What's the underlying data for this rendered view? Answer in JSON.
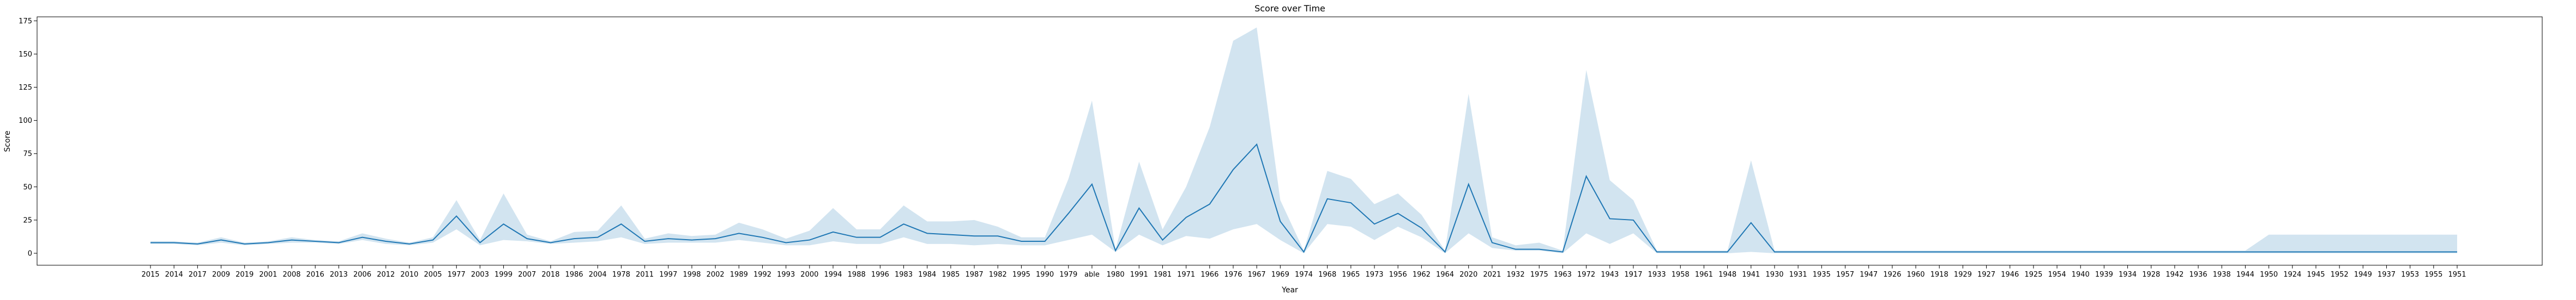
{
  "chart_data": {
    "type": "line",
    "title": "Score over Time",
    "xlabel": "Year",
    "ylabel": "Score",
    "ylim": [
      -9,
      178
    ],
    "yticks": [
      0,
      25,
      50,
      75,
      100,
      125,
      150,
      175
    ],
    "grid": false,
    "legend": "none",
    "colors": {
      "line": "#1f77b4",
      "band": "#1f77b4"
    },
    "categories": [
      "2015",
      "2014",
      "2017",
      "2009",
      "2019",
      "2001",
      "2008",
      "2016",
      "2013",
      "2006",
      "2012",
      "2010",
      "2005",
      "1977",
      "2003",
      "1999",
      "2007",
      "2018",
      "1986",
      "2004",
      "1978",
      "2011",
      "1997",
      "1998",
      "2002",
      "1989",
      "1992",
      "1993",
      "2000",
      "1994",
      "1988",
      "1996",
      "1983",
      "1984",
      "1985",
      "1987",
      "1982",
      "1995",
      "1990",
      "1979",
      "able",
      "1980",
      "1991",
      "1981",
      "1971",
      "1966",
      "1976",
      "1967",
      "1969",
      "1974",
      "1968",
      "1965",
      "1973",
      "1956",
      "1962",
      "1964",
      "2020",
      "2021",
      "1932",
      "1975",
      "1963",
      "1972",
      "1943",
      "1917",
      "1933",
      "1958",
      "1961",
      "1948",
      "1941",
      "1930",
      "1931",
      "1935",
      "1957",
      "1947",
      "1926",
      "1960",
      "1918",
      "1929",
      "1927",
      "1946",
      "1925",
      "1954",
      "1940",
      "1939",
      "1934",
      "1928",
      "1942",
      "1936",
      "1938",
      "1944",
      "1950",
      "1924",
      "1945",
      "1952",
      "1949",
      "1937",
      "1953",
      "1955",
      "1951"
    ],
    "series": [
      {
        "values": [
          8,
          8,
          7,
          10,
          7,
          8,
          10,
          9,
          8,
          12,
          9,
          7,
          10,
          28,
          8,
          22,
          11,
          8,
          11,
          12,
          22,
          9,
          11,
          10,
          11,
          15,
          12,
          8,
          10,
          16,
          12,
          12,
          22,
          15,
          14,
          13,
          13,
          9,
          9,
          30,
          52,
          2,
          34,
          10,
          27,
          37,
          63,
          82,
          24,
          1,
          41,
          38,
          22,
          30,
          19,
          1,
          52,
          8,
          3,
          3,
          1,
          58,
          26,
          25,
          1,
          1,
          1,
          1,
          23,
          1,
          1,
          1,
          1,
          1,
          1,
          1,
          1,
          1,
          1,
          1,
          1,
          1,
          1,
          1,
          1,
          1,
          1,
          1,
          1,
          1,
          1,
          1,
          1,
          1,
          1,
          1,
          1,
          1,
          1
        ],
        "ci_low": [
          7,
          7,
          6,
          8,
          6,
          7,
          8,
          8,
          7,
          10,
          7,
          6,
          8,
          18,
          6,
          10,
          9,
          7,
          8,
          9,
          12,
          7,
          8,
          8,
          8,
          10,
          8,
          6,
          6,
          9,
          7,
          7,
          12,
          7,
          7,
          6,
          7,
          6,
          6,
          10,
          14,
          1,
          14,
          6,
          13,
          11,
          18,
          22,
          10,
          0,
          22,
          20,
          10,
          20,
          12,
          0,
          15,
          4,
          2,
          2,
          0,
          15,
          7,
          15,
          0,
          0,
          0,
          0,
          1,
          0,
          0,
          0,
          0,
          0,
          0,
          0,
          0,
          0,
          0,
          0,
          0,
          0,
          0,
          0,
          0,
          0,
          0,
          0,
          0,
          0,
          0,
          0,
          0,
          0,
          0,
          0,
          0,
          0,
          0
        ],
        "ci_high": [
          9,
          9,
          8,
          12,
          8,
          9,
          12,
          10,
          9,
          15,
          11,
          8,
          12,
          40,
          10,
          45,
          14,
          9,
          16,
          17,
          36,
          11,
          15,
          13,
          14,
          23,
          18,
          11,
          17,
          34,
          18,
          18,
          36,
          24,
          24,
          25,
          20,
          12,
          12,
          56,
          115,
          3,
          69,
          18,
          50,
          95,
          160,
          170,
          40,
          2,
          62,
          56,
          37,
          45,
          29,
          2,
          120,
          12,
          6,
          8,
          2,
          138,
          55,
          40,
          2,
          2,
          2,
          2,
          70,
          2,
          2,
          2,
          2,
          2,
          2,
          2,
          2,
          2,
          2,
          2,
          2,
          2,
          2,
          2,
          2,
          2,
          2,
          2,
          2,
          2,
          14,
          14,
          14,
          14,
          14,
          14,
          14,
          14,
          14
        ]
      }
    ]
  }
}
